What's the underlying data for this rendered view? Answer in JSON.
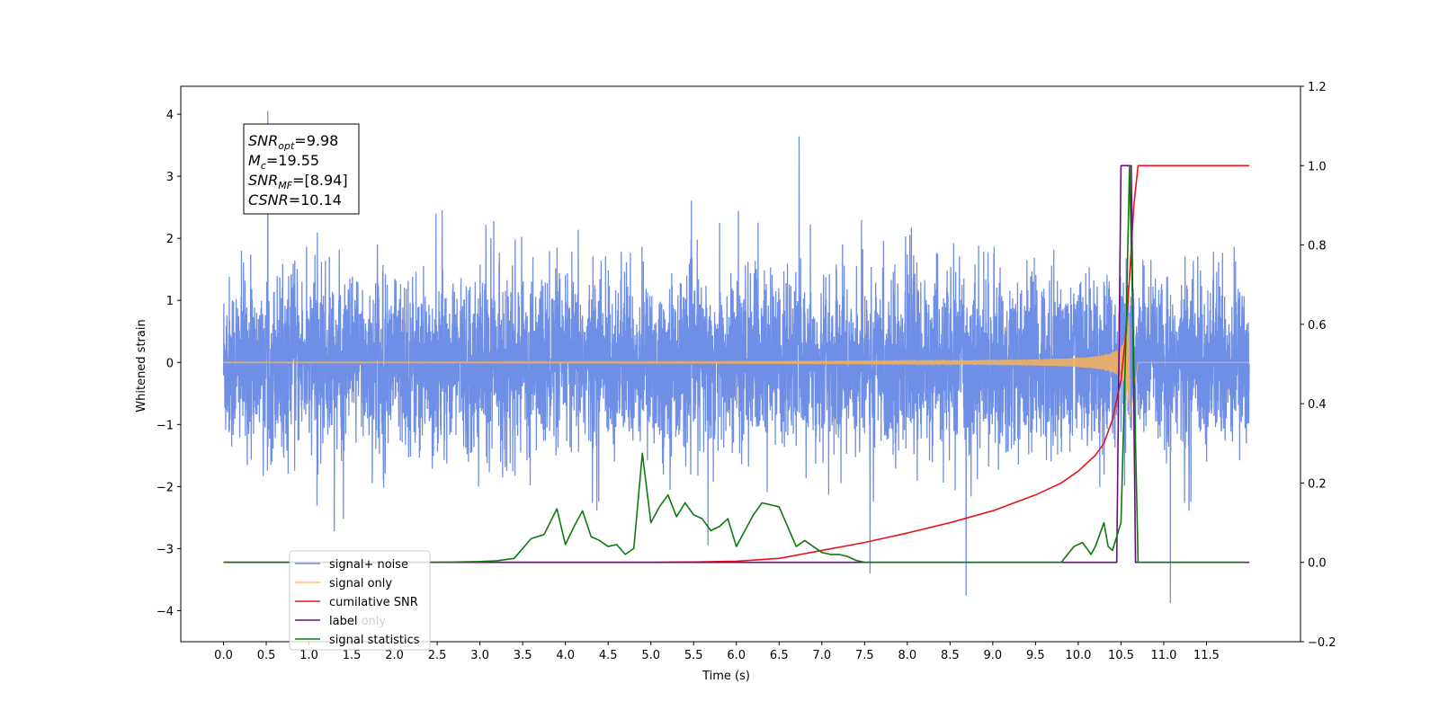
{
  "chart_data": {
    "type": "line",
    "xlabel": "Time (s)",
    "ylabel": "Whitened strain",
    "xlim": [
      -0.5,
      12.6
    ],
    "ylim": [
      -4.5,
      4.45
    ],
    "y2lim": [
      -0.2,
      1.2
    ],
    "x_ticks": [
      "0.0",
      "0.5",
      "1.0",
      "1.5",
      "2.0",
      "2.5",
      "3.0",
      "3.5",
      "4.0",
      "4.5",
      "5.0",
      "5.5",
      "6.0",
      "6.5",
      "7.0",
      "7.5",
      "8.0",
      "8.5",
      "9.0",
      "9.5",
      "10.0",
      "10.5",
      "11.0",
      "11.5"
    ],
    "y_ticks": [
      "4",
      "3",
      "2",
      "1",
      "0",
      "−1",
      "−2",
      "−3",
      "−4"
    ],
    "y2_ticks": [
      "1.2",
      "1.0",
      "0.8",
      "0.6",
      "0.4",
      "0.2",
      "0.0",
      "−0.2"
    ],
    "grid": false,
    "legend_placement": "lower-left",
    "legend": [
      "signal+ noise",
      "signal only",
      "cumilative SNR",
      "label",
      "signal statistics"
    ],
    "legend_hidden_text": "label only",
    "annotation": {
      "lines": [
        {
          "base": "SNR",
          "sub": "opt",
          "value": "=9.98"
        },
        {
          "base": "M",
          "sub": "c",
          "value": "=19.55"
        },
        {
          "base": "SNR",
          "sub": "MF",
          "value": "=[8.94]"
        },
        {
          "base": "CSNR",
          "sub": "",
          "value": "=10.14"
        }
      ]
    },
    "series": [
      {
        "name": "signal+ noise",
        "axis": "left",
        "color": "#6f8ee6",
        "kind": "noise",
        "x_range": [
          0.0,
          12.0
        ],
        "typical_range": [
          -1.5,
          1.5
        ],
        "peak_max": 4.05,
        "peak_min": -4.1
      },
      {
        "name": "signal only",
        "axis": "left",
        "color": "#f0b060",
        "kind": "chirp",
        "x_range": [
          0.0,
          12.0
        ],
        "peak_amplitude": 1.0,
        "peak_time": 10.6,
        "merger_end": 10.7
      },
      {
        "name": "cumilative SNR",
        "axis": "right",
        "color": "#e8141c",
        "x": [
          0.0,
          5.0,
          5.5,
          6.0,
          6.5,
          7.0,
          7.5,
          8.0,
          8.5,
          9.0,
          9.5,
          9.8,
          10.0,
          10.2,
          10.3,
          10.4,
          10.5,
          10.55,
          10.6,
          10.65,
          10.7,
          10.8,
          11.2,
          12.0
        ],
        "values": [
          0.0,
          0.0,
          0.001,
          0.003,
          0.01,
          0.03,
          0.05,
          0.074,
          0.1,
          0.13,
          0.17,
          0.2,
          0.23,
          0.27,
          0.3,
          0.36,
          0.46,
          0.56,
          0.72,
          0.9,
          1.0,
          1.0,
          1.0,
          1.0
        ]
      },
      {
        "name": "label",
        "axis": "right",
        "color": "#6a0d83",
        "x": [
          0.0,
          10.45,
          10.5,
          10.62,
          10.67,
          11.0,
          12.0
        ],
        "values": [
          0.0,
          0.0,
          1.0,
          1.0,
          0.0,
          0.0,
          0.0
        ]
      },
      {
        "name": "signal statistics",
        "axis": "right",
        "color": "#0e7a0e",
        "x": [
          0.0,
          2.5,
          3.0,
          3.2,
          3.4,
          3.6,
          3.75,
          3.9,
          4.0,
          4.1,
          4.2,
          4.3,
          4.4,
          4.5,
          4.6,
          4.7,
          4.8,
          4.9,
          5.0,
          5.1,
          5.2,
          5.3,
          5.4,
          5.5,
          5.6,
          5.7,
          5.8,
          5.9,
          6.0,
          6.1,
          6.2,
          6.3,
          6.4,
          6.5,
          6.6,
          6.7,
          6.8,
          6.9,
          7.0,
          7.1,
          7.2,
          7.3,
          7.4,
          7.5,
          8.0,
          9.0,
          9.8,
          9.95,
          10.05,
          10.15,
          10.2,
          10.3,
          10.35,
          10.4,
          10.5,
          10.55,
          10.6,
          10.65,
          10.7,
          10.8,
          11.0,
          11.5,
          11.95
        ],
        "values": [
          0.0,
          0.0,
          0.002,
          0.004,
          0.01,
          0.06,
          0.07,
          0.135,
          0.045,
          0.09,
          0.13,
          0.065,
          0.055,
          0.04,
          0.045,
          0.02,
          0.035,
          0.275,
          0.1,
          0.14,
          0.17,
          0.115,
          0.15,
          0.12,
          0.11,
          0.08,
          0.09,
          0.11,
          0.04,
          0.08,
          0.12,
          0.15,
          0.145,
          0.14,
          0.09,
          0.04,
          0.055,
          0.04,
          0.025,
          0.02,
          0.02,
          0.015,
          0.005,
          0.0,
          0.0,
          0.0,
          0.0,
          0.04,
          0.05,
          0.02,
          0.04,
          0.1,
          0.04,
          0.03,
          0.1,
          0.5,
          1.0,
          0.5,
          0.0,
          0.0,
          0.0,
          0.0,
          0.0
        ]
      }
    ]
  }
}
